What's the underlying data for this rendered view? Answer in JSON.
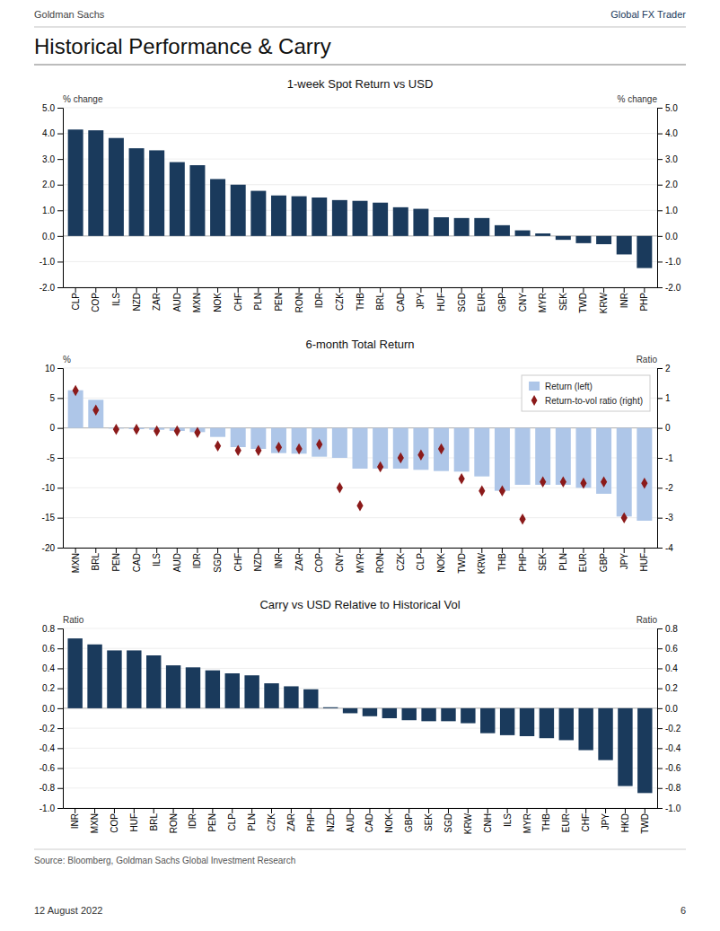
{
  "header": [
    "Goldman Sachs",
    "Global FX Trader"
  ],
  "title": "Historical Performance & Carry",
  "footer": [
    "Source: Bloomberg, Goldman Sachs Global Investment Research",
    "12 August 2022",
    "6"
  ],
  "chart_data": [
    {
      "type": "bar",
      "title": "1-week Spot Return vs USD",
      "ylabel": "% change",
      "y2label": "% change",
      "categories": [
        "CLP",
        "COP",
        "ILS",
        "NZD",
        "ZAR",
        "AUD",
        "MXN",
        "NOK",
        "CHF",
        "PLN",
        "PEN",
        "RON",
        "IDR",
        "CZK",
        "THB",
        "BRL",
        "CAD",
        "JPY",
        "HUF",
        "SGD",
        "EUR",
        "GBP",
        "CNY",
        "MYR",
        "SEK",
        "TWD",
        "KRW",
        "INR",
        "PHP"
      ],
      "values": [
        4.15,
        4.12,
        3.82,
        3.42,
        3.34,
        2.88,
        2.76,
        2.22,
        2.0,
        1.76,
        1.58,
        1.55,
        1.5,
        1.4,
        1.37,
        1.3,
        1.12,
        1.06,
        0.73,
        0.7,
        0.7,
        0.42,
        0.22,
        0.1,
        -0.15,
        -0.28,
        -0.32,
        -0.72,
        -1.25
      ],
      "color": "#1a3a5c",
      "ylim": [
        -2.0,
        5.0
      ],
      "yticks": [
        {
          "value": -2.0,
          "label": "-2.0"
        },
        {
          "value": -1.0,
          "label": "-1.0"
        },
        {
          "value": 0.0,
          "label": "0.0"
        },
        {
          "value": 1.0,
          "label": "1.0"
        },
        {
          "value": 2.0,
          "label": "2.0"
        },
        {
          "value": 3.0,
          "label": "3.0"
        },
        {
          "value": 4.0,
          "label": "4.0"
        },
        {
          "value": 5.0,
          "label": "5.0"
        }
      ],
      "y2lim": [
        -2.0,
        5.0
      ],
      "y2ticks": [
        {
          "value": -2.0,
          "label": "-2.0"
        },
        {
          "value": -1.0,
          "label": "-1.0"
        },
        {
          "value": 0.0,
          "label": "0.0"
        },
        {
          "value": 1.0,
          "label": "1.0"
        },
        {
          "value": 2.0,
          "label": "2.0"
        },
        {
          "value": 3.0,
          "label": "3.0"
        },
        {
          "value": 4.0,
          "label": "4.0"
        },
        {
          "value": 5.0,
          "label": "5.0"
        }
      ],
      "grid": true
    },
    {
      "type": "bar",
      "title": "6-month Total Return",
      "ylabel": "%",
      "y2label": "Ratio",
      "categories": [
        "MXN",
        "BRL",
        "PEN",
        "CAD",
        "ILS",
        "AUD",
        "IDR",
        "SGD",
        "CHF",
        "NZD",
        "INR",
        "ZAR",
        "COP",
        "CNY",
        "MYR",
        "RON",
        "CZK",
        "CLP",
        "NOK",
        "TWD",
        "KRW",
        "THB",
        "PHP",
        "SEK",
        "PLN",
        "EUR",
        "GBP",
        "JPY",
        "HUF"
      ],
      "series": [
        {
          "name": "Return (left)",
          "type": "bar",
          "color": "#aec6e8",
          "values": [
            6.3,
            4.7,
            -0.1,
            -0.2,
            -0.3,
            -0.5,
            -0.7,
            -1.5,
            -3.2,
            -3.5,
            -4.2,
            -4.3,
            -4.8,
            -5.0,
            -6.8,
            -6.8,
            -6.8,
            -7.0,
            -7.2,
            -7.3,
            -8.1,
            -10.5,
            -9.5,
            -9.5,
            -9.5,
            -10.0,
            -11.0,
            -14.8,
            -15.5
          ]
        },
        {
          "name": "Return-to-vol ratio (right)",
          "type": "scatter",
          "marker": "diamond",
          "color": "#8b1a1a",
          "axis": "y2",
          "values": [
            1.25,
            0.6,
            -0.05,
            -0.05,
            -0.1,
            -0.1,
            -0.15,
            -0.6,
            -0.75,
            -0.75,
            -0.65,
            -0.7,
            -0.55,
            -2.0,
            -2.6,
            -1.3,
            -1.0,
            -0.9,
            -0.7,
            -1.7,
            -2.1,
            -2.1,
            -3.05,
            -1.8,
            -1.8,
            -1.85,
            -1.8,
            -3.0,
            -1.85
          ]
        }
      ],
      "ylim": [
        -20,
        10
      ],
      "yticks": [
        -20,
        -15,
        -10,
        -5,
        0,
        5,
        10
      ],
      "y2lim": [
        -4,
        2
      ],
      "y2ticks": [
        -4,
        -3,
        -2,
        -1,
        0,
        1,
        2
      ],
      "grid": true,
      "legend": "upper right"
    },
    {
      "type": "bar",
      "title": "Carry vs USD Relative to Historical Vol",
      "ylabel": "Ratio",
      "y2label": "Ratio",
      "categories": [
        "INR",
        "MXN",
        "COP",
        "HUF",
        "BRL",
        "RON",
        "IDR",
        "PEN",
        "CLP",
        "PLN",
        "CZK",
        "ZAR",
        "PHP",
        "NZD",
        "AUD",
        "CAD",
        "NOK",
        "GBP",
        "SEK",
        "SGD",
        "KRW",
        "CNH",
        "ILS",
        "MYR",
        "THB",
        "EUR",
        "CHF",
        "JPY",
        "HKD",
        "TWD"
      ],
      "values": [
        0.7,
        0.64,
        0.58,
        0.58,
        0.53,
        0.43,
        0.41,
        0.38,
        0.35,
        0.33,
        0.25,
        0.22,
        0.19,
        0.01,
        -0.05,
        -0.08,
        -0.1,
        -0.12,
        -0.13,
        -0.13,
        -0.15,
        -0.25,
        -0.27,
        -0.28,
        -0.3,
        -0.32,
        -0.42,
        -0.52,
        -0.78,
        -0.85
      ],
      "color": "#1a3a5c",
      "ylim": [
        -1.0,
        0.8
      ],
      "yticks": [
        {
          "value": -1.0,
          "label": "-1.0"
        },
        -0.8,
        -0.6,
        -0.4,
        -0.2,
        {
          "value": 0.0,
          "label": "0.0"
        },
        0.2,
        0.4,
        0.6,
        0.8
      ],
      "y2lim": [
        -1.0,
        0.8
      ],
      "y2ticks": [
        {
          "value": -1.0,
          "label": "-1.0"
        },
        -0.8,
        -0.6,
        -0.4,
        -0.2,
        {
          "value": 0.0,
          "label": "0.0"
        },
        0.2,
        0.4,
        0.6,
        0.8
      ],
      "grid": true
    }
  ]
}
